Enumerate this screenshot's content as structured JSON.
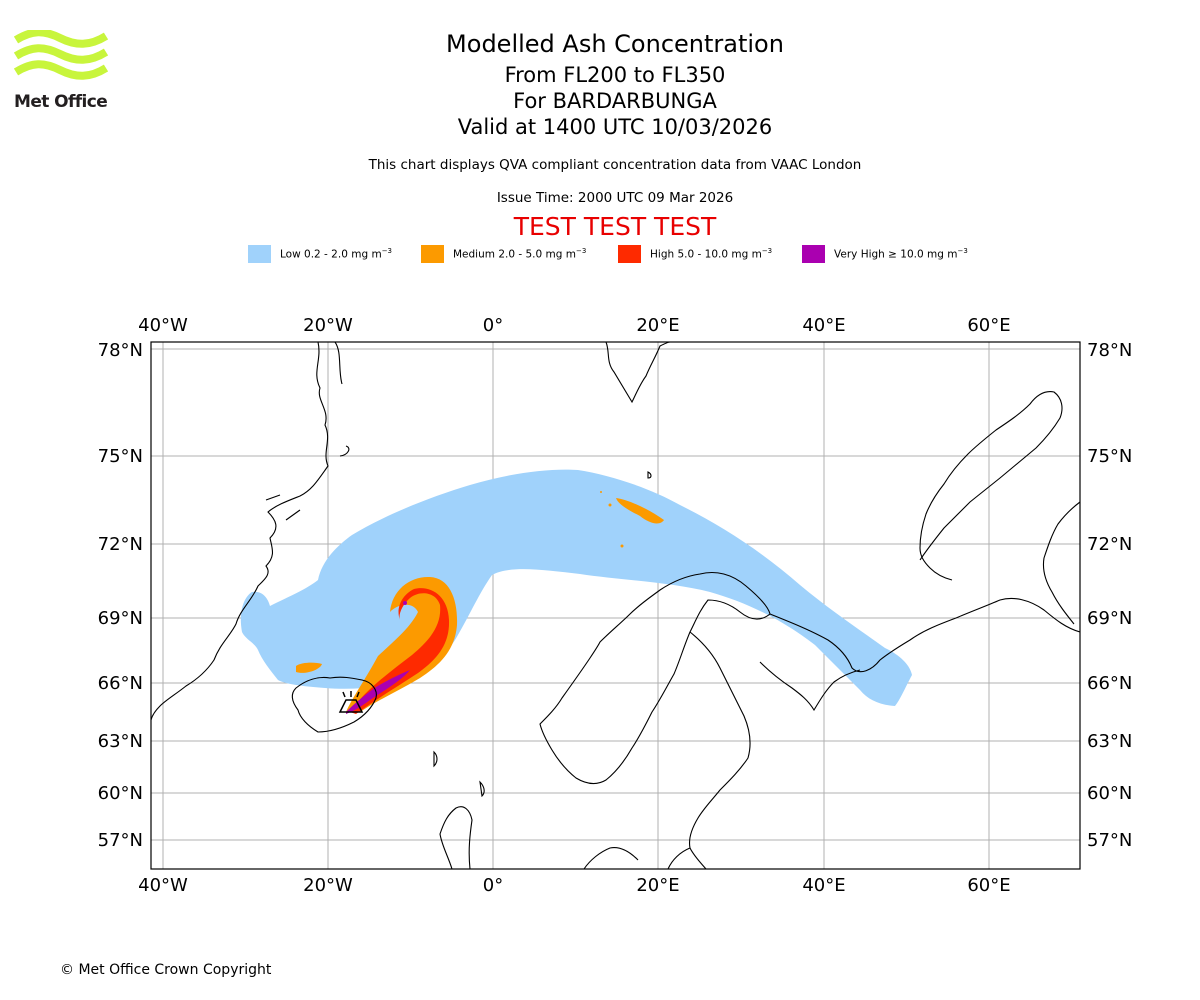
{
  "logo": {
    "text": "Met Office",
    "brand_color": "#c8f53c"
  },
  "title": {
    "line1": "Modelled Ash Concentration",
    "line2": "From FL200 to FL350",
    "line3": "For BARDARBUNGA",
    "line4": "Valid at 1400 UTC 10/03/2026",
    "description": "This chart displays QVA compliant concentration data from VAAC London",
    "issue_time": "Issue Time: 2000 UTC 09 Mar 2026",
    "test_banner": "TEST TEST TEST"
  },
  "legend": [
    {
      "label": "Low 0.2 - 2.0 mg m",
      "exp": "−3",
      "color": "#a0d2fb"
    },
    {
      "label": "Medium 2.0 - 5.0 mg m",
      "exp": "−3",
      "color": "#fc9a00"
    },
    {
      "label": "High 5.0 - 10.0 mg m",
      "exp": "−3",
      "color": "#fe2a00"
    },
    {
      "label": "Very High  ≥  10.0 mg m",
      "exp": "−3",
      "color": "#aa00b0"
    }
  ],
  "map": {
    "lon_labels": [
      "40°W",
      "20°W",
      "0°",
      "20°E",
      "40°E",
      "60°E"
    ],
    "lat_labels": [
      "78°N",
      "75°N",
      "72°N",
      "69°N",
      "66°N",
      "63°N",
      "60°N",
      "57°N"
    ],
    "volcano": "BARDARBUNGA",
    "grid": true
  },
  "copyright": "© Met Office Crown Copyright"
}
